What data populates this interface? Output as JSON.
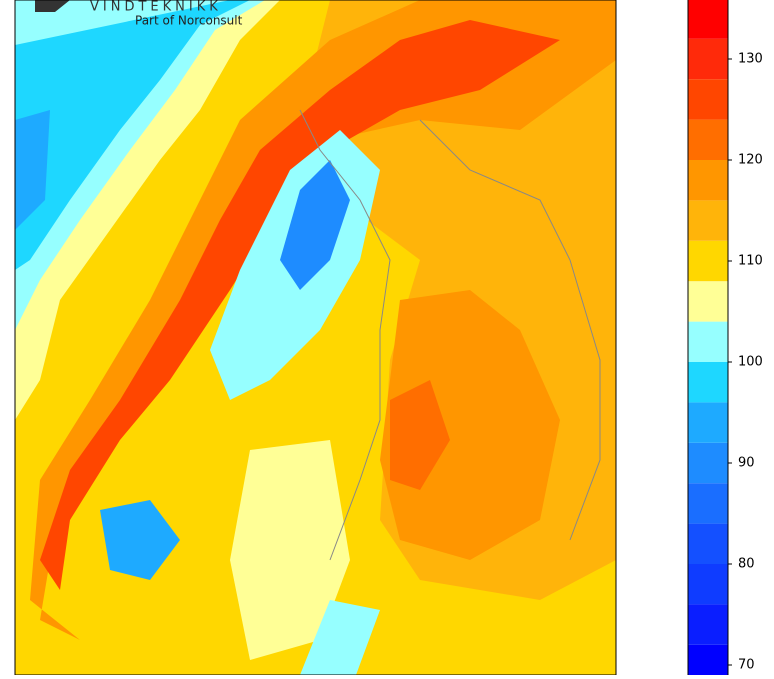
{
  "logo": {
    "name": "VINDTEKNIKK",
    "tagline": "Part of Norconsult"
  },
  "colorbar": {
    "levels": [
      68,
      72,
      76,
      80,
      84,
      88,
      92,
      96,
      100,
      104,
      108,
      112,
      116,
      120,
      124,
      128,
      132,
      136
    ],
    "colors": [
      "#0000ff",
      "#0a1eff",
      "#0f3cff",
      "#1450ff",
      "#1a6eff",
      "#1e8cff",
      "#1eaaff",
      "#1ed7ff",
      "#96ffff",
      "#ffff96",
      "#ffd700",
      "#ffb40a",
      "#ff9600",
      "#ff6e00",
      "#ff4600",
      "#ff2a0a",
      "#ff0000",
      "#c80000"
    ],
    "lim": [
      68,
      136
    ],
    "ticks": [
      70,
      80,
      90,
      100,
      110,
      120,
      130
    ]
  }
}
